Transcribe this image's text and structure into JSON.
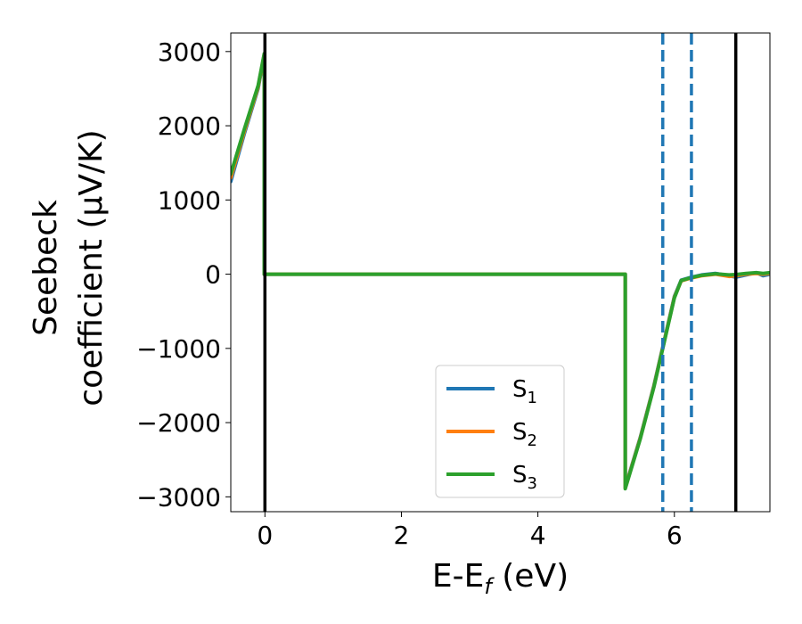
{
  "chart_data": {
    "type": "line",
    "title": "",
    "xlabel": {
      "main": "E-E",
      "sub": "f",
      "unit": " (eV)"
    },
    "ylabel": {
      "line1": "Seebeck",
      "line2": "coefficient  (μV/K)"
    },
    "xlim": [
      -0.5,
      7.4
    ],
    "ylim": [
      -3200,
      3250
    ],
    "xticks": [
      0,
      2,
      4,
      6
    ],
    "yticks": [
      3000,
      2000,
      1000,
      0,
      -1000,
      -2000,
      -3000
    ],
    "x_tick_labels": [
      "0",
      "2",
      "4",
      "6"
    ],
    "y_tick_labels": [
      "3000",
      "2000",
      "1000",
      "0",
      "−1000",
      "−2000",
      "−3000"
    ],
    "grid": false,
    "legend_position": "lower-center",
    "series": [
      {
        "name": "S",
        "sub": "1",
        "color": "#1f77b4",
        "points": [
          [
            -0.5,
            1250
          ],
          [
            -0.3,
            1900
          ],
          [
            -0.1,
            2500
          ],
          [
            -0.01,
            2950
          ],
          [
            -0.01,
            0
          ],
          [
            5.28,
            0
          ],
          [
            5.28,
            -2870
          ],
          [
            5.5,
            -2200
          ],
          [
            5.7,
            -1500
          ],
          [
            5.85,
            -900
          ],
          [
            6.0,
            -300
          ],
          [
            6.1,
            -80
          ],
          [
            6.25,
            -40
          ],
          [
            6.4,
            -10
          ],
          [
            6.6,
            10
          ],
          [
            6.8,
            -20
          ],
          [
            6.9,
            -40
          ],
          [
            7.05,
            -10
          ],
          [
            7.2,
            20
          ],
          [
            7.3,
            -20
          ],
          [
            7.4,
            0
          ]
        ]
      },
      {
        "name": "S",
        "sub": "2",
        "color": "#ff7f0e",
        "points": [
          [
            -0.5,
            1300
          ],
          [
            -0.3,
            1930
          ],
          [
            -0.1,
            2520
          ],
          [
            -0.01,
            2960
          ],
          [
            -0.01,
            0
          ],
          [
            5.28,
            0
          ],
          [
            5.28,
            -2880
          ],
          [
            5.5,
            -2210
          ],
          [
            5.7,
            -1510
          ],
          [
            5.85,
            -910
          ],
          [
            6.0,
            -310
          ],
          [
            6.1,
            -90
          ],
          [
            6.25,
            -50
          ],
          [
            6.4,
            -20
          ],
          [
            6.6,
            0
          ],
          [
            6.8,
            -30
          ],
          [
            6.9,
            -20
          ],
          [
            7.05,
            0
          ],
          [
            7.2,
            10
          ],
          [
            7.3,
            0
          ],
          [
            7.4,
            10
          ]
        ]
      },
      {
        "name": "S",
        "sub": "3",
        "color": "#2ca02c",
        "points": [
          [
            -0.5,
            1350
          ],
          [
            -0.3,
            1960
          ],
          [
            -0.1,
            2540
          ],
          [
            -0.01,
            2970
          ],
          [
            -0.01,
            0
          ],
          [
            5.28,
            0
          ],
          [
            5.28,
            -2890
          ],
          [
            5.5,
            -2220
          ],
          [
            5.7,
            -1520
          ],
          [
            5.85,
            -920
          ],
          [
            6.0,
            -320
          ],
          [
            6.1,
            -85
          ],
          [
            6.25,
            -45
          ],
          [
            6.4,
            -15
          ],
          [
            6.6,
            5
          ],
          [
            6.8,
            -10
          ],
          [
            6.9,
            -5
          ],
          [
            7.05,
            10
          ],
          [
            7.2,
            20
          ],
          [
            7.3,
            10
          ],
          [
            7.4,
            20
          ]
        ]
      }
    ],
    "vlines": [
      {
        "x": 0.0,
        "style": "solid",
        "color": "#000000"
      },
      {
        "x": 6.9,
        "style": "solid",
        "color": "#000000"
      },
      {
        "x": 5.83,
        "style": "dashed",
        "color": "#1f77b4"
      },
      {
        "x": 6.25,
        "style": "dashed",
        "color": "#1f77b4"
      }
    ]
  }
}
